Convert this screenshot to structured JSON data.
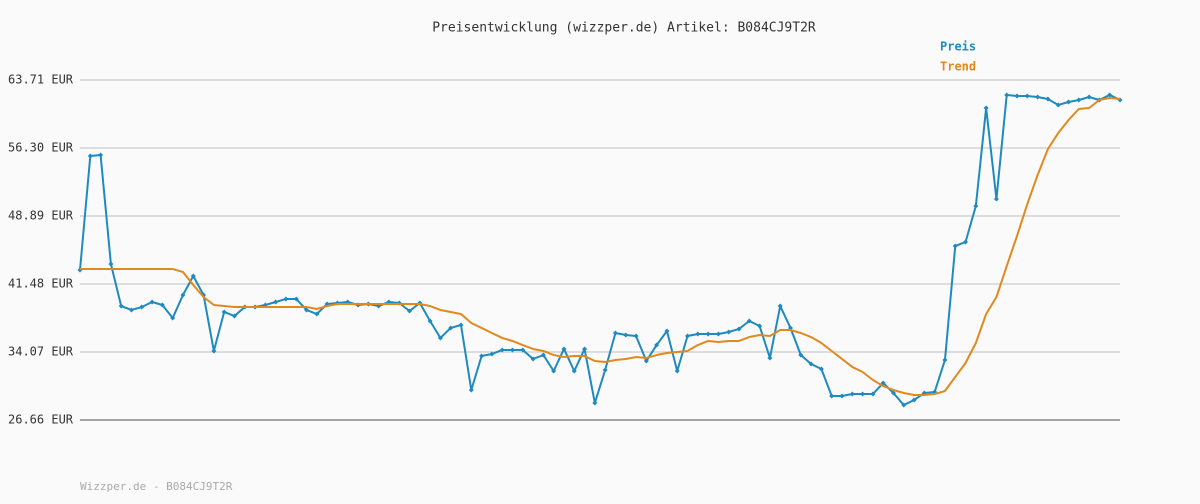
{
  "chart_data": {
    "type": "line",
    "title": "Preisentwicklung (wizzper.de) Artikel: B084CJ9T2R",
    "footer": "Wizzper.de - B084CJ9T2R",
    "ylim": [
      26.66,
      63.71
    ],
    "yticks": [
      {
        "value": 26.66,
        "label": "26.66 EUR"
      },
      {
        "value": 34.07,
        "label": "34.07 EUR"
      },
      {
        "value": 41.48,
        "label": "41.48 EUR"
      },
      {
        "value": 48.89,
        "label": "48.89 EUR"
      },
      {
        "value": 56.3,
        "label": "56.30 EUR"
      },
      {
        "value": 63.71,
        "label": "63.71 EUR"
      }
    ],
    "grid": true,
    "legend": "top-right",
    "series": [
      {
        "name": "Preis",
        "color": "#1f8ac0",
        "markers": true,
        "values": [
          43.01,
          55.43,
          55.54,
          43.66,
          39.08,
          38.65,
          38.97,
          39.52,
          39.19,
          37.77,
          40.28,
          42.35,
          40.28,
          34.18,
          38.43,
          37.99,
          38.97,
          38.97,
          39.19,
          39.52,
          39.85,
          39.85,
          38.65,
          38.21,
          39.3,
          39.41,
          39.52,
          39.19,
          39.3,
          39.08,
          39.52,
          39.41,
          38.54,
          39.41,
          37.45,
          35.6,
          36.69,
          37.01,
          29.93,
          33.63,
          33.85,
          34.29,
          34.29,
          34.29,
          33.31,
          33.74,
          32.0,
          34.4,
          32.0,
          34.4,
          28.51,
          32.11,
          36.14,
          35.92,
          35.81,
          33.09,
          34.83,
          36.36,
          32.0,
          35.81,
          36.03,
          36.03,
          36.03,
          36.25,
          36.58,
          37.45,
          36.9,
          33.42,
          39.08,
          36.69,
          33.74,
          32.76,
          32.22,
          29.28,
          29.28,
          29.49,
          29.49,
          29.49,
          30.69,
          29.6,
          28.29,
          28.84,
          29.6,
          29.71,
          33.2,
          45.62,
          46.06,
          49.98,
          60.66,
          50.74,
          62.08,
          61.97,
          61.97,
          61.86,
          61.64,
          60.99,
          61.31,
          61.53,
          61.86,
          61.53,
          62.08,
          61.53
        ]
      },
      {
        "name": "Trend",
        "color": "#e08a1e",
        "markers": false,
        "values": [
          43.11,
          43.11,
          43.11,
          43.11,
          43.11,
          43.11,
          43.11,
          43.11,
          43.11,
          43.11,
          42.79,
          41.37,
          40.06,
          39.19,
          39.08,
          38.97,
          38.97,
          38.97,
          38.97,
          38.97,
          38.97,
          38.97,
          38.97,
          38.76,
          39.08,
          39.3,
          39.3,
          39.3,
          39.3,
          39.3,
          39.3,
          39.3,
          39.3,
          39.3,
          39.08,
          38.65,
          38.43,
          38.21,
          37.23,
          36.69,
          36.14,
          35.6,
          35.27,
          34.83,
          34.4,
          34.18,
          33.74,
          33.52,
          33.63,
          33.63,
          33.09,
          32.98,
          33.2,
          33.31,
          33.52,
          33.42,
          33.74,
          33.96,
          34.07,
          34.18,
          34.83,
          35.27,
          35.16,
          35.27,
          35.27,
          35.7,
          35.92,
          35.81,
          36.47,
          36.47,
          36.14,
          35.7,
          35.05,
          34.18,
          33.31,
          32.44,
          31.89,
          31.02,
          30.36,
          29.93,
          29.6,
          29.38,
          29.38,
          29.49,
          29.82,
          31.35,
          32.87,
          35.05,
          38.21,
          40.06,
          43.44,
          46.71,
          50.2,
          53.36,
          56.19,
          57.93,
          59.35,
          60.55,
          60.66,
          61.53,
          61.75,
          61.64
        ]
      }
    ]
  }
}
